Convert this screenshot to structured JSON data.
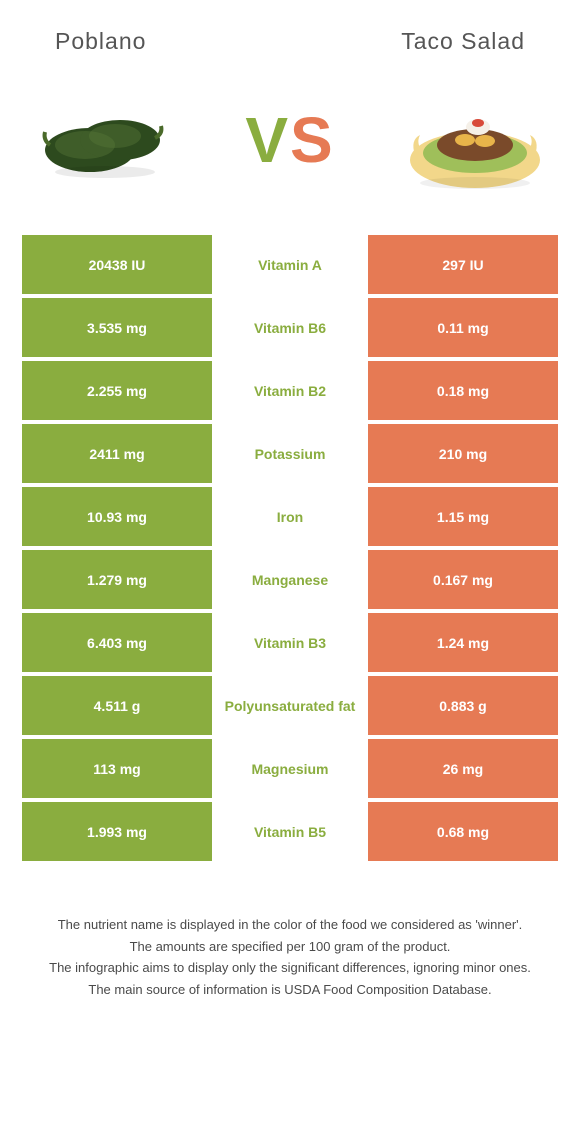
{
  "header": {
    "left": "Poblano",
    "right": "Taco Salad"
  },
  "vs": {
    "v": "V",
    "s": "S"
  },
  "colors": {
    "left_bg": "#8aad3f",
    "right_bg": "#e67a54",
    "mid_text_left_win": "#8aad3f",
    "mid_text_right_win": "#e67a54",
    "poblano_fill": "#2d4a1e",
    "poblano_highlight": "#5a7a3a",
    "taco_shell": "#f2d78a",
    "taco_meat": "#7a4a2a",
    "taco_lettuce": "#9fbf5a",
    "taco_cheese": "#e8b44a",
    "taco_cream": "#f5f0e8"
  },
  "rows": [
    {
      "left": "20438 IU",
      "mid": "Vitamin A",
      "right": "297 IU",
      "winner": "left"
    },
    {
      "left": "3.535 mg",
      "mid": "Vitamin B6",
      "right": "0.11 mg",
      "winner": "left"
    },
    {
      "left": "2.255 mg",
      "mid": "Vitamin B2",
      "right": "0.18 mg",
      "winner": "left"
    },
    {
      "left": "2411 mg",
      "mid": "Potassium",
      "right": "210 mg",
      "winner": "left"
    },
    {
      "left": "10.93 mg",
      "mid": "Iron",
      "right": "1.15 mg",
      "winner": "left"
    },
    {
      "left": "1.279 mg",
      "mid": "Manganese",
      "right": "0.167 mg",
      "winner": "left"
    },
    {
      "left": "6.403 mg",
      "mid": "Vitamin B3",
      "right": "1.24 mg",
      "winner": "left"
    },
    {
      "left": "4.511 g",
      "mid": "Polyunsaturated fat",
      "right": "0.883 g",
      "winner": "left"
    },
    {
      "left": "113 mg",
      "mid": "Magnesium",
      "right": "26 mg",
      "winner": "left"
    },
    {
      "left": "1.993 mg",
      "mid": "Vitamin B5",
      "right": "0.68 mg",
      "winner": "left"
    }
  ],
  "footer": {
    "line1": "The nutrient name is displayed in the color of the food we considered as 'winner'.",
    "line2": "The amounts are specified per 100 gram of the product.",
    "line3": "The infographic aims to display only the significant differences, ignoring minor ones.",
    "line4": "The main source of information is USDA Food Composition Database."
  }
}
